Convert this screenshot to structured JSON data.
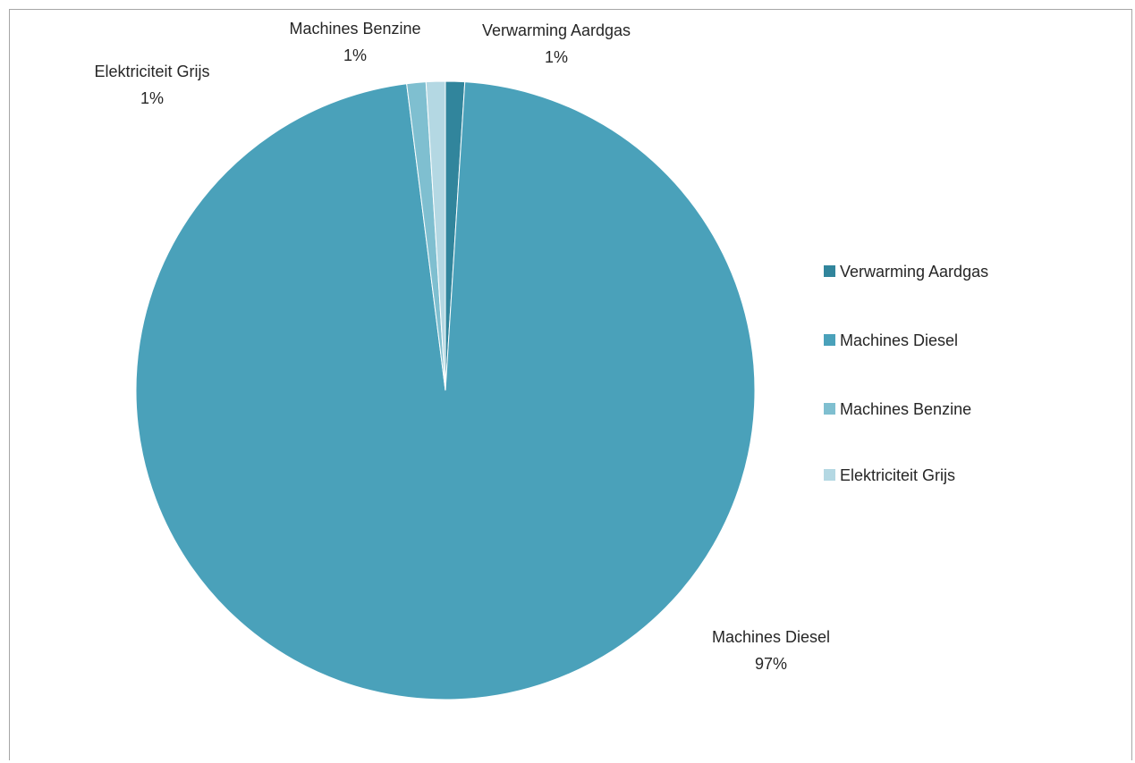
{
  "chart_data": {
    "type": "pie",
    "title": "",
    "legend_position": "right",
    "categories": [
      "Verwarming Aardgas",
      "Machines Diesel",
      "Machines Benzine",
      "Elektriciteit Grijs"
    ],
    "values": [
      1,
      97,
      1,
      1
    ],
    "value_labels": [
      "1%",
      "97%",
      "1%",
      "1%"
    ],
    "colors": [
      "#31859c",
      "#4aa1ba",
      "#7fbfd0",
      "#b4d8e3"
    ],
    "data_labels": [
      {
        "name": "Verwarming Aardgas",
        "value": "1%"
      },
      {
        "name": "Machines Diesel",
        "value": "97%"
      },
      {
        "name": "Machines Benzine",
        "value": "1%"
      },
      {
        "name": "Elektriciteit Grijs",
        "value": "1%"
      }
    ]
  }
}
